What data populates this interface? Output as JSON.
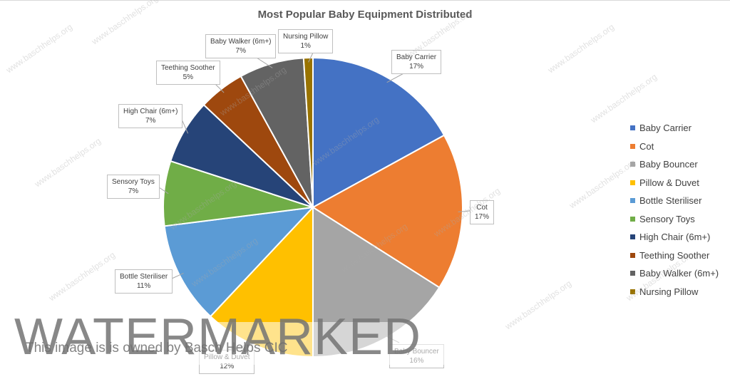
{
  "chart_data": {
    "type": "pie",
    "title": "Most Popular Baby Equipment Distributed",
    "categories": [
      "Baby Carrier",
      "Cot",
      "Baby Bouncer",
      "Pillow & Duvet",
      "Bottle Steriliser",
      "Sensory Toys",
      "High Chair (6m+)",
      "Teething Soother",
      "Baby Walker (6m+)",
      "Nursing Pillow"
    ],
    "values": [
      17,
      17,
      16,
      12,
      11,
      7,
      7,
      5,
      7,
      1
    ],
    "data_labels": [
      "17%",
      "17%",
      "16%",
      "12%",
      "11%",
      "7%",
      "7%",
      "5%",
      "7%",
      "1%"
    ],
    "colors": [
      "#4472C4",
      "#ED7D31",
      "#A5A5A5",
      "#FFC000",
      "#5B9BD5",
      "#70AD47",
      "#264478",
      "#9E480E",
      "#636363",
      "#997300"
    ],
    "legend_position": "right"
  },
  "watermark": {
    "big_text": "WATERMARKED",
    "note": "This image is is owned by Basch Helps CIC",
    "site": "www.baschhelps.org"
  }
}
